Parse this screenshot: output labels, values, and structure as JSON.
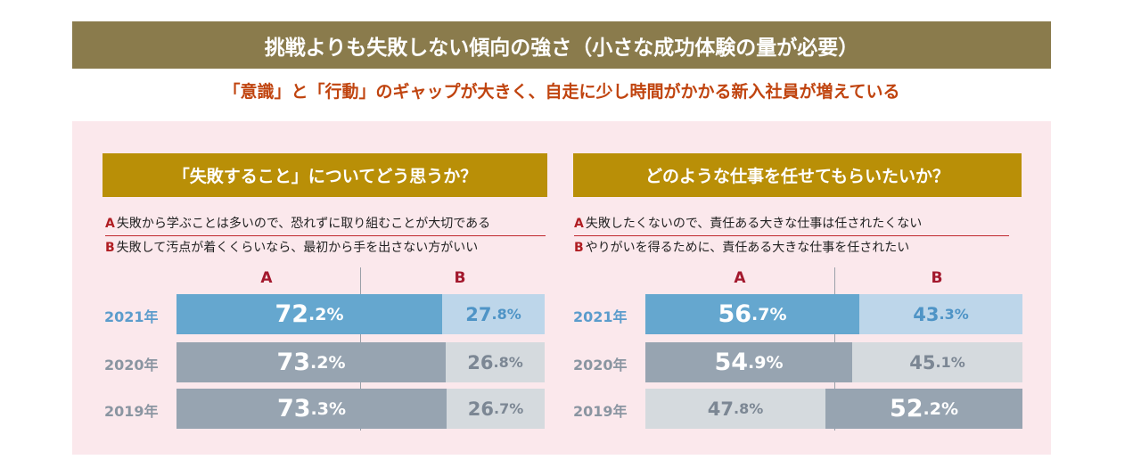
{
  "title": "挑戦よりも失敗しない傾向の強さ（小さな成功体験の量が必要）",
  "subtitle": "「意識」と「行動」のギャップが大きく、自走に少し時間がかかる新入社員が増えている",
  "colors": {
    "title_bg": "#8a7b4c",
    "subtitle_text": "#c0440f",
    "panel_bg": "#fbe8ec",
    "header_bg": "#b98f07",
    "bar_2021_main": "#65a7cf",
    "bar_2021_light": "#bdd6ea",
    "bar_dark": "#97a4b1",
    "bar_light": "#d5dade"
  },
  "chart_data": [
    {
      "type": "bar",
      "title": "「失敗すること」についてどう思うか？",
      "legend": [
        {
          "key": "A",
          "text": "失敗から学ぶことは多いので、恐れずに取り組むことが大切である"
        },
        {
          "key": "B",
          "text": "失敗して汚点が着くくらいなら、最初から手を出さない方がいい"
        }
      ],
      "series_labels": [
        "A",
        "B"
      ],
      "categories": [
        "2021年",
        "2020年",
        "2019年"
      ],
      "series": [
        {
          "name": "A",
          "values": [
            72.2,
            73.2,
            73.3
          ]
        },
        {
          "name": "B",
          "values": [
            27.8,
            26.8,
            26.7
          ]
        }
      ],
      "value_labels": [
        [
          {
            "int": "72",
            "dec": ".2%"
          },
          {
            "int": "27",
            "dec": ".8%"
          }
        ],
        [
          {
            "int": "73",
            "dec": ".2%"
          },
          {
            "int": "26",
            "dec": ".8%"
          }
        ],
        [
          {
            "int": "73",
            "dec": ".3%"
          },
          {
            "int": "26",
            "dec": ".7%"
          }
        ]
      ],
      "stacked": true,
      "ylim": [
        0,
        100
      ]
    },
    {
      "type": "bar",
      "title": "どのような仕事を任せてもらいたいか？",
      "legend": [
        {
          "key": "A",
          "text": "失敗したくないので、責任ある大きな仕事は任されたくない"
        },
        {
          "key": "B",
          "text": "やりがいを得るために、責任ある大きな仕事を任されたい"
        }
      ],
      "series_labels": [
        "A",
        "B"
      ],
      "categories": [
        "2021年",
        "2020年",
        "2019年"
      ],
      "series": [
        {
          "name": "A",
          "values": [
            56.7,
            54.9,
            47.8
          ]
        },
        {
          "name": "B",
          "values": [
            43.3,
            45.1,
            52.2
          ]
        }
      ],
      "value_labels": [
        [
          {
            "int": "56",
            "dec": ".7%"
          },
          {
            "int": "43",
            "dec": ".3%"
          }
        ],
        [
          {
            "int": "54",
            "dec": ".9%"
          },
          {
            "int": "45",
            "dec": ".1%"
          }
        ],
        [
          {
            "int": "47",
            "dec": ".8%"
          },
          {
            "int": "52",
            "dec": ".2%"
          }
        ]
      ],
      "stacked": true,
      "ylim": [
        0,
        100
      ]
    }
  ]
}
